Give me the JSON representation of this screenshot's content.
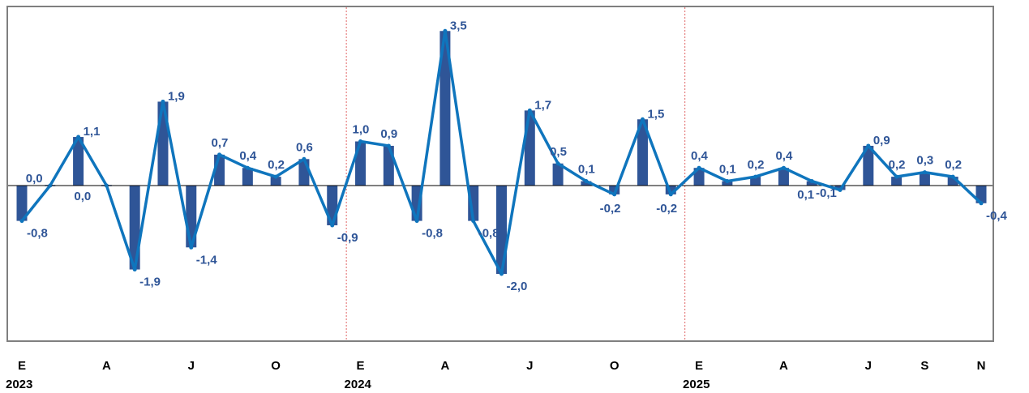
{
  "chart_data": {
    "type": "bar",
    "values": [
      -0.8,
      0.0,
      1.1,
      0.0,
      -1.9,
      1.9,
      -1.4,
      0.7,
      0.4,
      0.2,
      0.6,
      -0.9,
      1.0,
      0.9,
      -0.8,
      3.5,
      -0.8,
      -2.0,
      1.7,
      0.5,
      0.1,
      -0.2,
      1.5,
      -0.2,
      0.4,
      0.1,
      0.2,
      0.4,
      0.1,
      -0.1,
      0.9,
      0.2,
      0.3,
      0.2,
      -0.4
    ],
    "value_labels": [
      "-0,8",
      "0,0",
      "1,1",
      "0,0",
      "-1,9",
      "1,9",
      "-1,4",
      "0,7",
      "0,4",
      "0,2",
      "0,6",
      "-0,9",
      "1,0",
      "0,9",
      "-0,8",
      "3,5",
      "-0,8",
      "-2,0",
      "1,7",
      "0,5",
      "0,1",
      "-0,2",
      "1,5",
      "-0,2",
      "0,4",
      "0,1",
      "0,2",
      "0,4",
      "0,1",
      "-0,1",
      "0,9",
      "0,2",
      "0,3",
      "0,2",
      "-0,4"
    ],
    "line_values": [
      -0.8,
      0.0,
      1.1,
      0.0,
      -1.9,
      1.9,
      -1.4,
      0.7,
      0.4,
      0.2,
      0.6,
      -0.9,
      1.0,
      0.9,
      -0.8,
      3.5,
      -0.8,
      -2.0,
      1.7,
      0.5,
      0.1,
      -0.2,
      1.5,
      -0.2,
      0.4,
      0.1,
      0.2,
      0.4,
      0.1,
      -0.1,
      0.9,
      0.2,
      0.3,
      0.2,
      -0.4
    ],
    "x_ticks": [
      {
        "index": 0,
        "label": "E"
      },
      {
        "index": 3,
        "label": "A"
      },
      {
        "index": 6,
        "label": "J"
      },
      {
        "index": 9,
        "label": "O"
      },
      {
        "index": 12,
        "label": "E"
      },
      {
        "index": 15,
        "label": "A"
      },
      {
        "index": 18,
        "label": "J"
      },
      {
        "index": 21,
        "label": "O"
      },
      {
        "index": 24,
        "label": "E"
      },
      {
        "index": 27,
        "label": "A"
      },
      {
        "index": 30,
        "label": "J"
      },
      {
        "index": 32,
        "label": "S"
      },
      {
        "index": 34,
        "label": "N"
      }
    ],
    "year_labels": [
      {
        "index": 0,
        "label": "2023"
      },
      {
        "index": 12,
        "label": "2024"
      },
      {
        "index": 24,
        "label": "2025"
      }
    ],
    "year_dividers_before_index": [
      12,
      24
    ],
    "ylim": [
      -3.5,
      4.0
    ],
    "grid": false,
    "colors": {
      "bars": "#2f5597",
      "line": "#0f75bd",
      "labels": "#2f5597",
      "divider": "#e06666",
      "frame": "#7f7f7f"
    }
  }
}
